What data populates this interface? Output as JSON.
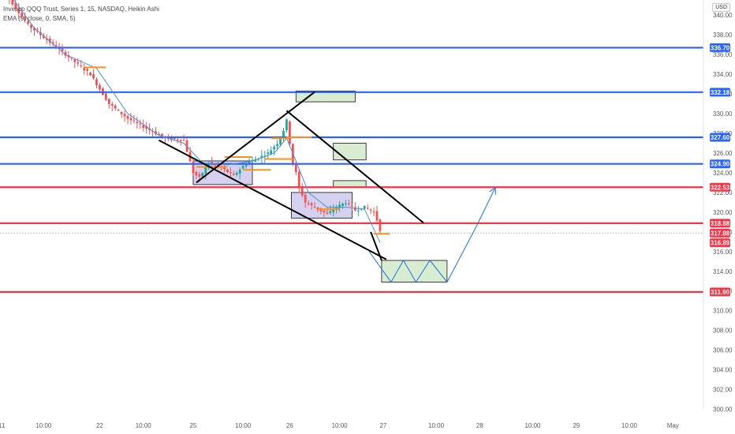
{
  "legend": {
    "line1": "Invesco QQQ Trust, Series 1, 15, NASDAQ, Heikin Ashi",
    "line2": "EMA (9, close, 0, SMA, 5)"
  },
  "currency": "USD",
  "colors": {
    "up": "#26a69a",
    "down": "#ef5350",
    "blue_level": "#2962ff",
    "red_level": "#f23645",
    "ema": "#4a90e2",
    "orange": "#f7931a",
    "zone_green": "#d8ecd2",
    "zone_purple": "#d6d1f0",
    "projection": "#2f7ad9",
    "trendline": "#000000"
  },
  "chart_data": {
    "type": "candlestick",
    "title": "Invesco QQQ Trust, Series 1, 15, NASDAQ, Heikin Ashi",
    "ylim": [
      300,
      341.5
    ],
    "y_ticks": [
      300,
      302,
      304,
      306,
      308,
      310,
      312,
      314,
      316,
      318,
      320,
      322,
      324,
      326,
      328,
      330,
      332,
      334,
      336,
      338,
      340
    ],
    "y_tick_labels": [
      "300.00",
      "302.00",
      "304.00",
      "306.00",
      "308.00",
      "310.00",
      "312.00",
      "314.00",
      "316.00",
      "318.00",
      "320.00",
      "322.00",
      "324.00",
      "326.00",
      "328.00",
      "330.00",
      "332.00",
      "334.00",
      "336.00",
      "338.00",
      "340.00"
    ],
    "x_ticks": [
      {
        "label": "1",
        "bar": -1
      },
      {
        "label": "10:00",
        "bar": 13
      },
      {
        "label": "22",
        "bar": 31
      },
      {
        "label": "10:00",
        "bar": 45
      },
      {
        "label": "25",
        "bar": 61
      },
      {
        "label": "10:00",
        "bar": 77
      },
      {
        "label": "26",
        "bar": 92
      },
      {
        "label": "10:00",
        "bar": 108
      },
      {
        "label": "27",
        "bar": 122
      },
      {
        "label": "10:00",
        "bar": 139
      },
      {
        "label": "28",
        "bar": 153
      },
      {
        "label": "10:00",
        "bar": 170
      },
      {
        "label": "29",
        "bar": 184
      },
      {
        "label": "10:00",
        "bar": 201
      },
      {
        "label": "May",
        "bar": 215
      }
    ],
    "levels": [
      {
        "price": 336.7,
        "label": "336.70",
        "color": "blue"
      },
      {
        "price": 332.18,
        "label": "332.18",
        "color": "blue"
      },
      {
        "price": 327.6,
        "label": "327.60",
        "color": "blue"
      },
      {
        "price": 324.9,
        "label": "324.90",
        "color": "blue"
      },
      {
        "price": 322.53,
        "label": "322.53",
        "color": "red"
      },
      {
        "price": 318.88,
        "label": "318.88",
        "color": "red"
      },
      {
        "price": 311.9,
        "label": "311.90",
        "color": "red"
      }
    ],
    "price_badges": [
      {
        "price": 317.88,
        "label": "317.88",
        "kind": "last"
      },
      {
        "price": 316.89,
        "label": "316.89",
        "kind": "ema"
      }
    ],
    "anchors": [
      {
        "bar": 0,
        "price": 342.5
      },
      {
        "bar": 8,
        "price": 339.0
      },
      {
        "bar": 16,
        "price": 337.0
      },
      {
        "bar": 22,
        "price": 335.5
      },
      {
        "bar": 28,
        "price": 334.0
      },
      {
        "bar": 34,
        "price": 331.0
      },
      {
        "bar": 40,
        "price": 329.5
      },
      {
        "bar": 46,
        "price": 328.5
      },
      {
        "bar": 52,
        "price": 327.5
      },
      {
        "bar": 58,
        "price": 327.3
      },
      {
        "bar": 61,
        "price": 324.0
      },
      {
        "bar": 63,
        "price": 323.5
      },
      {
        "bar": 66,
        "price": 325.0
      },
      {
        "bar": 70,
        "price": 324.5
      },
      {
        "bar": 74,
        "price": 323.7
      },
      {
        "bar": 78,
        "price": 325.0
      },
      {
        "bar": 82,
        "price": 325.5
      },
      {
        "bar": 85,
        "price": 326.0
      },
      {
        "bar": 88,
        "price": 327.0
      },
      {
        "bar": 90,
        "price": 328.3
      },
      {
        "bar": 91,
        "price": 329.3
      },
      {
        "bar": 92,
        "price": 327.0
      },
      {
        "bar": 93,
        "price": 325.0
      },
      {
        "bar": 94,
        "price": 324.0
      },
      {
        "bar": 95,
        "price": 322.5
      },
      {
        "bar": 97,
        "price": 321.0
      },
      {
        "bar": 100,
        "price": 320.5
      },
      {
        "bar": 104,
        "price": 319.8
      },
      {
        "bar": 107,
        "price": 320.5
      },
      {
        "bar": 110,
        "price": 321.0
      },
      {
        "bar": 113,
        "price": 320.2
      },
      {
        "bar": 116,
        "price": 320.5
      },
      {
        "bar": 119,
        "price": 320.0
      },
      {
        "bar": 120,
        "price": 319.2
      },
      {
        "bar": 121,
        "price": 318.2
      }
    ],
    "ema_points": [
      {
        "bar": 0,
        "price": 343.0
      },
      {
        "bar": 10,
        "price": 338.7
      },
      {
        "bar": 20,
        "price": 336.0
      },
      {
        "bar": 30,
        "price": 334.6
      },
      {
        "bar": 40,
        "price": 330.0
      },
      {
        "bar": 50,
        "price": 327.8
      },
      {
        "bar": 58,
        "price": 327.0
      },
      {
        "bar": 64,
        "price": 325.0
      },
      {
        "bar": 72,
        "price": 324.8
      },
      {
        "bar": 80,
        "price": 325.2
      },
      {
        "bar": 87,
        "price": 326.0
      },
      {
        "bar": 91,
        "price": 327.5
      },
      {
        "bar": 94,
        "price": 325.2
      },
      {
        "bar": 98,
        "price": 322.0
      },
      {
        "bar": 104,
        "price": 320.5
      },
      {
        "bar": 110,
        "price": 320.5
      },
      {
        "bar": 116,
        "price": 320.3
      },
      {
        "bar": 121,
        "price": 316.9
      }
    ],
    "trendlines": [
      {
        "bar1": 50,
        "p1": 327.3,
        "bar2": 123,
        "p2": 315.2
      },
      {
        "bar1": 62,
        "p1": 323.0,
        "bar2": 100,
        "p2": 332.2
      },
      {
        "bar1": 91,
        "p1": 330.3,
        "bar2": 135,
        "p2": 318.9
      },
      {
        "bar1": 118,
        "p1": 318.0,
        "bar2": 121.5,
        "p2": 315.1
      }
    ],
    "zones": [
      {
        "bar1": 94,
        "p1": 332.3,
        "bar2": 113,
        "p2": 331.2,
        "fill": "green"
      },
      {
        "bar1": 106,
        "p1": 327.0,
        "bar2": 116.5,
        "p2": 325.3,
        "fill": "green"
      },
      {
        "bar1": 106,
        "p1": 323.2,
        "bar2": 116.5,
        "p2": 322.5,
        "fill": "green"
      },
      {
        "bar1": 121.5,
        "p1": 315.1,
        "bar2": 142.5,
        "p2": 312.9,
        "fill": "green"
      },
      {
        "bar1": 61,
        "p1": 325.2,
        "bar2": 80,
        "p2": 322.8,
        "fill": "purple"
      },
      {
        "bar1": 92.5,
        "p1": 322.0,
        "bar2": 112,
        "p2": 319.4,
        "fill": "purple"
      }
    ],
    "orange_marks": [
      {
        "bar1": 26,
        "bar2": 33,
        "price": 334.7
      },
      {
        "bar1": 62,
        "bar2": 72,
        "price": 324.6
      },
      {
        "bar1": 71,
        "bar2": 80,
        "price": 325.6
      },
      {
        "bar1": 77,
        "bar2": 86,
        "price": 324.3
      },
      {
        "bar1": 84,
        "bar2": 93,
        "price": 325.4
      },
      {
        "bar1": 86,
        "bar2": 92,
        "price": 327.5
      },
      {
        "bar1": 91,
        "bar2": 99,
        "price": 327.6
      },
      {
        "bar1": 101,
        "bar2": 108,
        "price": 320.3
      },
      {
        "bar1": 119,
        "bar2": 124,
        "price": 317.8
      }
    ],
    "projection": [
      {
        "bar": 117.5,
        "price": 316.0
      },
      {
        "bar": 124.5,
        "price": 312.9
      },
      {
        "bar": 128.5,
        "price": 315.1
      },
      {
        "bar": 132.5,
        "price": 312.9
      },
      {
        "bar": 137,
        "price": 315.1
      },
      {
        "bar": 142.5,
        "price": 312.9
      },
      {
        "bar": 152,
        "price": 318.6
      },
      {
        "bar": 158,
        "price": 322.5
      }
    ]
  }
}
